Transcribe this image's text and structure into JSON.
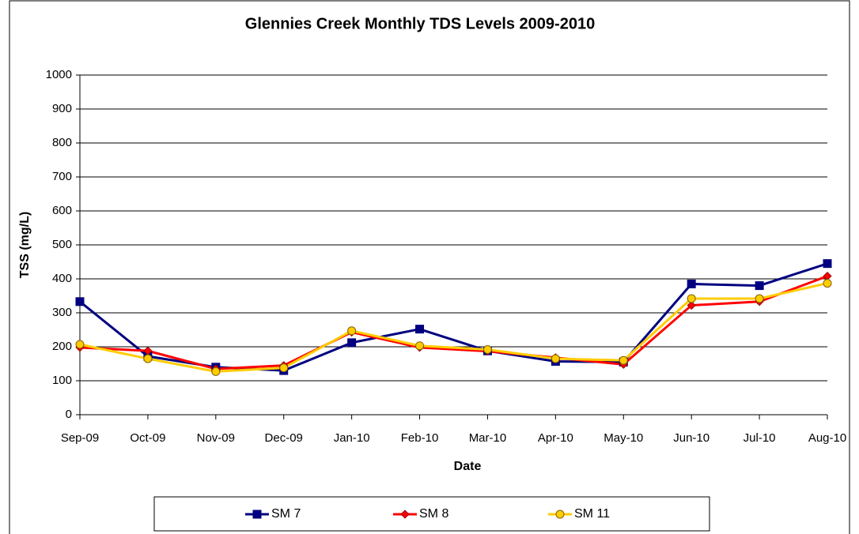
{
  "chart_data": {
    "type": "line",
    "title": "Glennies Creek Monthly TDS Levels 2009-2010",
    "x_label": "Date",
    "y_label": "TSS  (mg/L)",
    "categories": [
      "Sep-09",
      "Oct-09",
      "Nov-09",
      "Dec-09",
      "Jan-10",
      "Feb-10",
      "Mar-10",
      "Apr-10",
      "May-10",
      "Jun-10",
      "Jul-10",
      "Aug-10"
    ],
    "series": [
      {
        "name": "SM 7",
        "color": "#000080",
        "marker": "square",
        "values": [
          333,
          172,
          140,
          130,
          212,
          252,
          188,
          157,
          155,
          385,
          380,
          445
        ]
      },
      {
        "name": "SM 8",
        "color": "#ff0000",
        "marker": "diamond",
        "values": [
          198,
          188,
          135,
          145,
          243,
          198,
          187,
          168,
          148,
          322,
          333,
          408
        ]
      },
      {
        "name": "SM 11",
        "color": "#ffcc00",
        "marker": "circle",
        "values": [
          207,
          165,
          127,
          138,
          247,
          203,
          192,
          165,
          160,
          342,
          342,
          387
        ]
      }
    ],
    "ylim": [
      0,
      1000
    ],
    "yticks": [
      0,
      100,
      200,
      300,
      400,
      500,
      600,
      700,
      800,
      900,
      1000
    ],
    "grid": true,
    "legend": "bottom"
  }
}
